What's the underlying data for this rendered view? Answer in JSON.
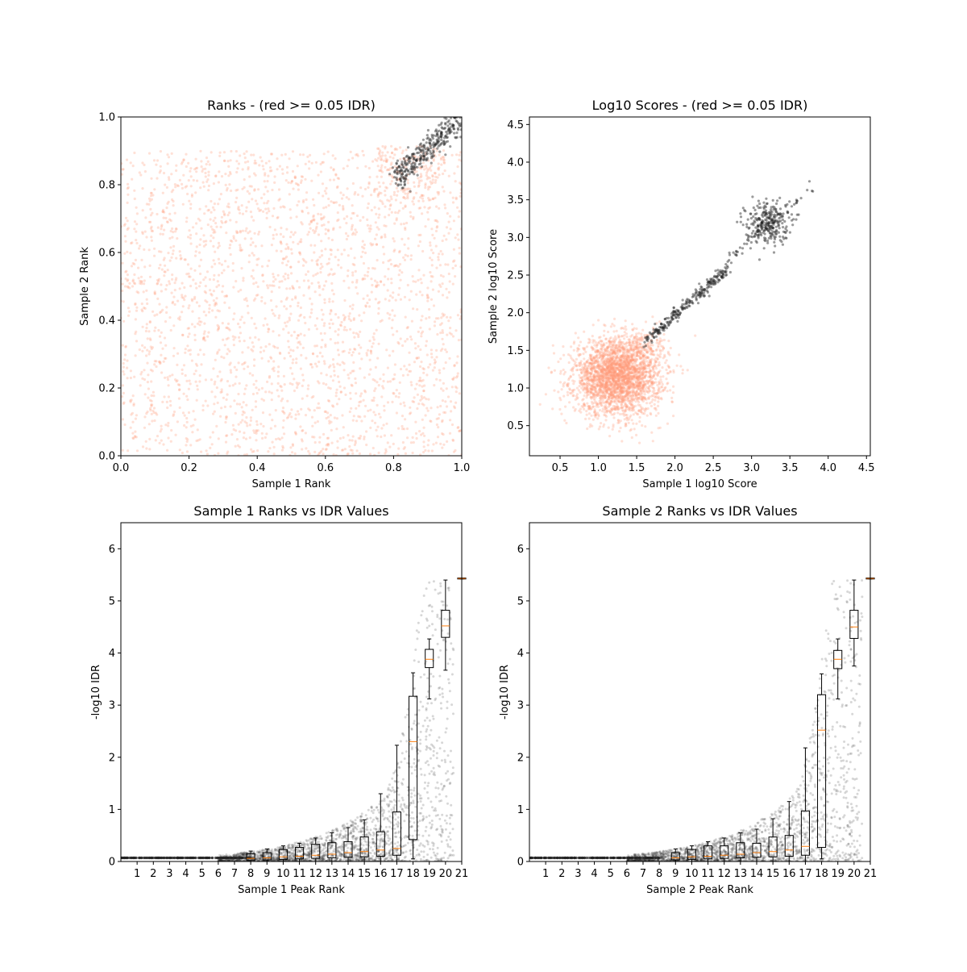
{
  "figure": {
    "colors": {
      "above_threshold": "#ff9a7a",
      "below_threshold": "#222222",
      "median_line": "#ff7f0e",
      "box_edge": "#000000"
    }
  },
  "chart_data": [
    {
      "type": "scatter",
      "title": "Ranks - (red >= 0.05 IDR)",
      "xlabel": "Sample 1 Rank",
      "ylabel": "Sample 2 Rank",
      "xlim": [
        0.0,
        1.0
      ],
      "ylim": [
        0.0,
        1.0
      ],
      "xticks": [
        "0.0",
        "0.2",
        "0.4",
        "0.6",
        "0.8",
        "1.0"
      ],
      "yticks": [
        "0.0",
        "0.2",
        "0.4",
        "0.6",
        "0.8",
        "1.0"
      ],
      "series": [
        {
          "group": "red",
          "color": "#ff9a7a",
          "distribution": "uniform",
          "n": 2600,
          "x_range": [
            0.0,
            1.0
          ],
          "y_range": [
            0.0,
            0.9
          ]
        },
        {
          "group": "red",
          "color": "#ff9a7a",
          "distribution": "uniform",
          "n": 180,
          "x_range": [
            0.75,
            0.95
          ],
          "y_range": [
            0.75,
            0.92
          ]
        },
        {
          "group": "black",
          "color": "#222222",
          "distribution": "diagonal",
          "n": 320,
          "x_range": [
            0.8,
            1.0
          ],
          "y_range": [
            0.81,
            1.0
          ]
        }
      ]
    },
    {
      "type": "scatter",
      "title": "Log10 Scores - (red >= 0.05 IDR)",
      "xlabel": "Sample 1 log10 Score",
      "ylabel": "Sample 2 log10 Score",
      "xlim": [
        0.1,
        4.55
      ],
      "ylim": [
        0.1,
        4.6
      ],
      "xticks": [
        "0.5",
        "1.0",
        "1.5",
        "2.0",
        "2.5",
        "3.0",
        "3.5",
        "4.0",
        "4.5"
      ],
      "yticks": [
        "0.5",
        "1.0",
        "1.5",
        "2.0",
        "2.5",
        "3.0",
        "3.5",
        "4.0",
        "4.5"
      ],
      "series": [
        {
          "group": "red",
          "color": "#ff9a7a",
          "distribution": "gaussian",
          "n": 2800,
          "center": [
            1.25,
            1.15
          ],
          "spread": [
            0.28,
            0.25
          ]
        },
        {
          "group": "red",
          "color": "#ff9a7a",
          "distribution": "gaussian",
          "n": 120,
          "center": [
            1.6,
            1.55
          ],
          "spread": [
            0.15,
            0.12
          ]
        },
        {
          "group": "black",
          "color": "#222222",
          "distribution": "diagonal",
          "n": 260,
          "x_range": [
            1.6,
            2.7
          ],
          "y_range": [
            1.6,
            2.6
          ]
        },
        {
          "group": "black",
          "color": "#222222",
          "distribution": "gaussian",
          "n": 260,
          "center": [
            3.2,
            3.2
          ],
          "spread": [
            0.14,
            0.14
          ]
        },
        {
          "group": "black",
          "color": "#222222",
          "distribution": "diagonal",
          "n": 60,
          "x_range": [
            2.7,
            3.8
          ],
          "y_range": [
            2.7,
            3.7
          ]
        }
      ]
    },
    {
      "type": "box",
      "title": "Sample 1 Ranks vs IDR Values",
      "xlabel": "Sample 1 Peak Rank",
      "ylabel": "-log10 IDR",
      "xlim": [
        0,
        21
      ],
      "ylim": [
        0,
        6.5
      ],
      "xticks": [
        "1",
        "2",
        "3",
        "4",
        "5",
        "6",
        "7",
        "8",
        "9",
        "10",
        "11",
        "12",
        "13",
        "14",
        "15",
        "16",
        "17",
        "18",
        "19",
        "20",
        "21"
      ],
      "yticks": [
        "0",
        "1",
        "2",
        "3",
        "4",
        "5",
        "6"
      ],
      "boxes": [
        {
          "pos": 8,
          "q1": 0.02,
          "median": 0.06,
          "q3": 0.15,
          "whislo": 0.0,
          "whishi": 0.2
        },
        {
          "pos": 9,
          "q1": 0.03,
          "median": 0.07,
          "q3": 0.17,
          "whislo": 0.0,
          "whishi": 0.24
        },
        {
          "pos": 10,
          "q1": 0.04,
          "median": 0.09,
          "q3": 0.23,
          "whislo": 0.0,
          "whishi": 0.3
        },
        {
          "pos": 11,
          "q1": 0.05,
          "median": 0.1,
          "q3": 0.27,
          "whislo": 0.0,
          "whishi": 0.35
        },
        {
          "pos": 12,
          "q1": 0.06,
          "median": 0.12,
          "q3": 0.33,
          "whislo": 0.0,
          "whishi": 0.45
        },
        {
          "pos": 13,
          "q1": 0.07,
          "median": 0.14,
          "q3": 0.36,
          "whislo": 0.0,
          "whishi": 0.55
        },
        {
          "pos": 14,
          "q1": 0.08,
          "median": 0.17,
          "q3": 0.38,
          "whislo": 0.0,
          "whishi": 0.65
        },
        {
          "pos": 15,
          "q1": 0.09,
          "median": 0.19,
          "q3": 0.47,
          "whislo": 0.0,
          "whishi": 0.8
        },
        {
          "pos": 16,
          "q1": 0.1,
          "median": 0.22,
          "q3": 0.57,
          "whislo": 0.0,
          "whishi": 1.3
        },
        {
          "pos": 17,
          "q1": 0.12,
          "median": 0.25,
          "q3": 0.95,
          "whislo": 0.0,
          "whishi": 2.23
        },
        {
          "pos": 18,
          "q1": 0.42,
          "median": 2.3,
          "q3": 3.17,
          "whislo": 0.05,
          "whishi": 3.62
        },
        {
          "pos": 19,
          "q1": 3.72,
          "median": 3.88,
          "q3": 4.07,
          "whislo": 3.12,
          "whishi": 4.27
        },
        {
          "pos": 20,
          "q1": 4.3,
          "median": 4.52,
          "q3": 4.82,
          "whislo": 3.67,
          "whishi": 5.4
        },
        {
          "pos": 21,
          "q1": 5.42,
          "median": 5.43,
          "q3": 5.44,
          "whislo": 5.42,
          "whishi": 5.44
        }
      ],
      "scatter": {
        "color": "#222222",
        "n": 2200
      }
    },
    {
      "type": "box",
      "title": "Sample 2 Ranks vs IDR Values",
      "xlabel": "Sample 2 Peak Rank",
      "ylabel": "-log10 IDR",
      "xlim": [
        0,
        21
      ],
      "ylim": [
        0,
        6.5
      ],
      "xticks": [
        "1",
        "2",
        "3",
        "4",
        "5",
        "6",
        "7",
        "8",
        "9",
        "10",
        "11",
        "12",
        "13",
        "14",
        "15",
        "16",
        "17",
        "18",
        "19",
        "20",
        "21"
      ],
      "yticks": [
        "0",
        "1",
        "2",
        "3",
        "4",
        "5",
        "6"
      ],
      "boxes": [
        {
          "pos": 9,
          "q1": 0.03,
          "median": 0.07,
          "q3": 0.17,
          "whislo": 0.0,
          "whishi": 0.24
        },
        {
          "pos": 10,
          "q1": 0.04,
          "median": 0.09,
          "q3": 0.23,
          "whislo": 0.0,
          "whishi": 0.3
        },
        {
          "pos": 11,
          "q1": 0.05,
          "median": 0.1,
          "q3": 0.3,
          "whislo": 0.0,
          "whishi": 0.38
        },
        {
          "pos": 12,
          "q1": 0.06,
          "median": 0.12,
          "q3": 0.3,
          "whislo": 0.0,
          "whishi": 0.45
        },
        {
          "pos": 13,
          "q1": 0.07,
          "median": 0.14,
          "q3": 0.36,
          "whislo": 0.0,
          "whishi": 0.55
        },
        {
          "pos": 14,
          "q1": 0.08,
          "median": 0.17,
          "q3": 0.35,
          "whislo": 0.0,
          "whishi": 0.62
        },
        {
          "pos": 15,
          "q1": 0.09,
          "median": 0.19,
          "q3": 0.47,
          "whislo": 0.0,
          "whishi": 0.82
        },
        {
          "pos": 16,
          "q1": 0.1,
          "median": 0.22,
          "q3": 0.5,
          "whislo": 0.0,
          "whishi": 1.15
        },
        {
          "pos": 17,
          "q1": 0.12,
          "median": 0.29,
          "q3": 0.97,
          "whislo": 0.0,
          "whishi": 2.18
        },
        {
          "pos": 18,
          "q1": 0.27,
          "median": 2.52,
          "q3": 3.2,
          "whislo": 0.05,
          "whishi": 3.6
        },
        {
          "pos": 19,
          "q1": 3.7,
          "median": 3.88,
          "q3": 4.05,
          "whislo": 3.12,
          "whishi": 4.27
        },
        {
          "pos": 20,
          "q1": 4.28,
          "median": 4.5,
          "q3": 4.82,
          "whislo": 3.75,
          "whishi": 5.4
        },
        {
          "pos": 21,
          "q1": 5.42,
          "median": 5.43,
          "q3": 5.44,
          "whislo": 5.42,
          "whishi": 5.44
        }
      ],
      "scatter": {
        "color": "#222222",
        "n": 2200
      }
    }
  ]
}
